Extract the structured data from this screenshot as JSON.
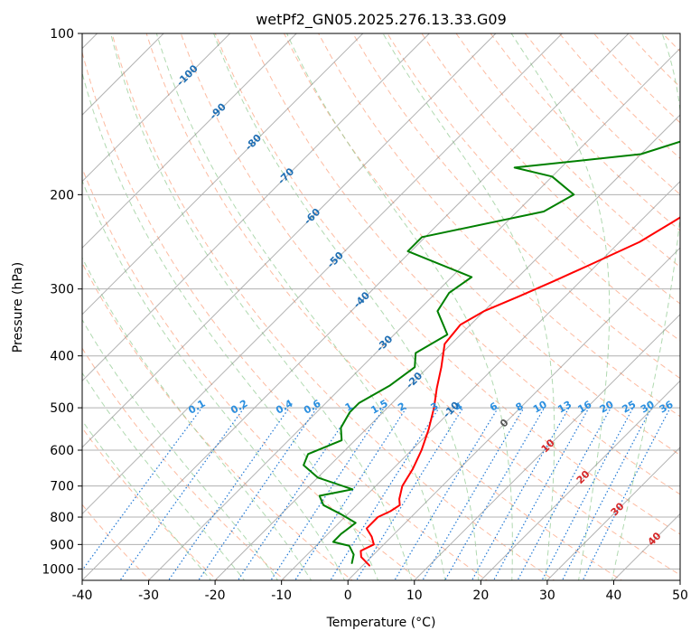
{
  "chart_data": {
    "type": "line",
    "title": "wetPf2_GN05.2025.276.13.33.G09",
    "xlabel": "Temperature (°C)",
    "ylabel": "Pressure (hPa)",
    "xlim": [
      -40,
      50
    ],
    "ylim": [
      1050,
      100
    ],
    "y_scale": "log",
    "x_ticks": [
      -40,
      -30,
      -20,
      -10,
      0,
      10,
      20,
      30,
      40,
      50
    ],
    "y_ticks": [
      100,
      200,
      300,
      400,
      500,
      600,
      700,
      800,
      900,
      1000
    ],
    "grid": true,
    "colors": {
      "temperature": "#ff0000",
      "dewpoint": "#008000",
      "isotherm": "#808080",
      "dry_adiabat": "#fc8d62",
      "moist_adiabat": "#8fc98f",
      "mixing_ratio": "#1f77d4",
      "iso_label_blue": "#1f6fb4",
      "iso_label_red": "#d62728",
      "iso_label_grey": "#555555"
    },
    "series": [
      {
        "name": "temperature",
        "points": [
          [
            1,
            985
          ],
          [
            -1.5,
            950
          ],
          [
            -2.5,
            925
          ],
          [
            -1.5,
            900
          ],
          [
            -3,
            870
          ],
          [
            -5,
            840
          ],
          [
            -5,
            800
          ],
          [
            -4,
            780
          ],
          [
            -3.5,
            760
          ],
          [
            -4.5,
            740
          ],
          [
            -6,
            700
          ],
          [
            -7,
            650
          ],
          [
            -8.5,
            600
          ],
          [
            -10.5,
            550
          ],
          [
            -13,
            500
          ],
          [
            -15.5,
            460
          ],
          [
            -18,
            420
          ],
          [
            -21,
            380
          ],
          [
            -21.5,
            350
          ],
          [
            -20,
            330
          ],
          [
            -17,
            310
          ],
          [
            -14,
            290
          ],
          [
            -11,
            270
          ],
          [
            -7,
            245
          ],
          [
            -5,
            225
          ],
          [
            -3,
            205
          ],
          [
            1,
            185
          ],
          [
            4,
            170
          ],
          [
            8,
            150
          ],
          [
            14,
            130
          ],
          [
            20,
            115
          ],
          [
            27,
            100
          ]
        ],
        "values": []
      },
      {
        "name": "dewpoint",
        "points": [
          [
            -2,
            975
          ],
          [
            -3,
            940
          ],
          [
            -5,
            905
          ],
          [
            -8,
            890
          ],
          [
            -8,
            860
          ],
          [
            -7.5,
            820
          ],
          [
            -11,
            790
          ],
          [
            -15,
            760
          ],
          [
            -17,
            730
          ],
          [
            -13,
            710
          ],
          [
            -20,
            675
          ],
          [
            -24,
            640
          ],
          [
            -25,
            610
          ],
          [
            -22,
            575
          ],
          [
            -24,
            545
          ],
          [
            -25,
            510
          ],
          [
            -25,
            490
          ],
          [
            -23,
            455
          ],
          [
            -22,
            420
          ],
          [
            -24,
            395
          ],
          [
            -22,
            365
          ],
          [
            -27,
            330
          ],
          [
            -28,
            305
          ],
          [
            -27,
            285
          ],
          [
            -40.5,
            255
          ],
          [
            -40.5,
            240
          ],
          [
            -26,
            215
          ],
          [
            -24,
            200
          ],
          [
            -30,
            185
          ],
          [
            -37,
            178
          ],
          [
            -20,
            168
          ],
          [
            -14,
            155
          ],
          [
            -9,
            130
          ],
          [
            -3,
            110
          ],
          [
            4,
            100
          ]
        ],
        "values": []
      }
    ],
    "isotherm_labels": [
      "-100",
      "-90",
      "-80",
      "-70",
      "-60",
      "-50",
      "-40",
      "-30",
      "-20",
      "-10",
      "0",
      "10",
      "20",
      "30",
      "40"
    ],
    "mixing_ratio_labels": [
      "0.1",
      "0.2",
      "0.4",
      "0.6",
      "1",
      "1.5",
      "2",
      "3",
      "4",
      "6",
      "8",
      "10",
      "13",
      "16",
      "20",
      "25",
      "30",
      "36"
    ],
    "mixing_ratio_values": [
      0.1,
      0.2,
      0.4,
      0.6,
      1,
      1.5,
      2,
      3,
      4,
      6,
      8,
      10,
      13,
      16,
      20,
      25,
      30,
      36
    ]
  }
}
